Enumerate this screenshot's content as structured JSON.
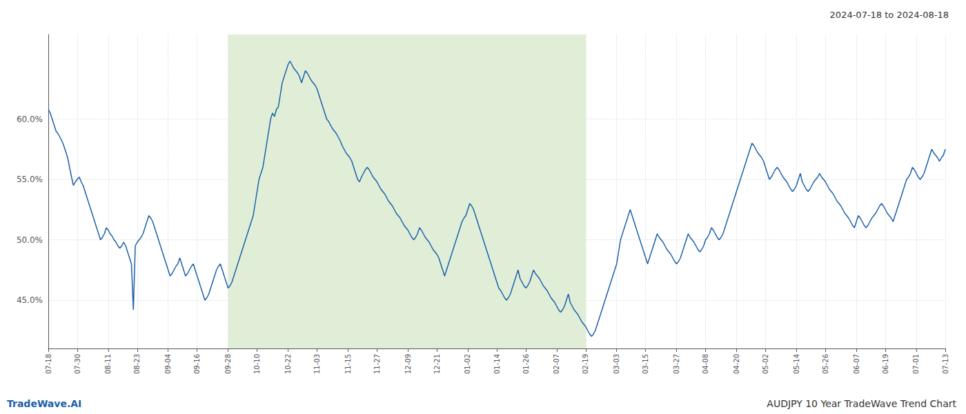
{
  "chart_data": {
    "type": "line",
    "title": "2024-07-18 to 2024-08-18",
    "footer_left": "TradeWave.AI",
    "footer_right": "AUDJPY 10 Year TradeWave Trend Chart",
    "color": "#1a5fa8",
    "grid": true,
    "ylim": [
      41.0,
      67.0
    ],
    "yticks": [
      {
        "value": 45.0,
        "label": "45.0%"
      },
      {
        "value": 50.0,
        "label": "50.0%"
      },
      {
        "value": 55.0,
        "label": "55.0%"
      },
      {
        "value": 60.0,
        "label": "60.0%"
      }
    ],
    "shade": {
      "from": "09-28",
      "to": "02-19",
      "color": "#e0eed8"
    },
    "categories": [
      "07-18",
      null,
      null,
      null,
      null,
      null,
      null,
      null,
      null,
      null,
      null,
      null,
      null,
      null,
      null,
      "07-30",
      null,
      null,
      null,
      null,
      null,
      null,
      null,
      null,
      null,
      null,
      null,
      null,
      null,
      null,
      null,
      "08-11",
      null,
      null,
      null,
      null,
      null,
      null,
      null,
      null,
      null,
      null,
      null,
      null,
      null,
      null,
      "08-23",
      null,
      null,
      null,
      null,
      null,
      null,
      null,
      null,
      null,
      null,
      null,
      null,
      null,
      null,
      null,
      "09-04",
      null,
      null,
      null,
      null,
      null,
      null,
      null,
      null,
      null,
      null,
      null,
      null,
      null,
      null,
      "09-16",
      null,
      null,
      null,
      null,
      null,
      null,
      null,
      null,
      null,
      null,
      null,
      null,
      null,
      null,
      null,
      "09-28",
      null,
      null,
      null,
      null,
      null,
      null,
      null,
      null,
      null,
      null,
      null,
      null,
      null,
      null,
      "10-10",
      null,
      null,
      null,
      null,
      null,
      null,
      null,
      null,
      null,
      null,
      null,
      null,
      null,
      null,
      null,
      "10-22",
      null,
      null,
      null,
      null,
      null,
      null,
      null,
      null,
      null,
      null,
      null,
      null,
      null,
      null,
      "11-03",
      null,
      null,
      null,
      null,
      null,
      null,
      null,
      null,
      null,
      null,
      null,
      null,
      null,
      null,
      null,
      "11-15",
      null,
      null,
      null,
      null,
      null,
      null,
      null,
      null,
      null,
      null,
      null,
      null,
      null,
      null,
      "11-27",
      null,
      null,
      null,
      null,
      null,
      null,
      null,
      null,
      null,
      null,
      null,
      null,
      null,
      null,
      null,
      "12-09",
      null,
      null,
      null,
      null,
      null,
      null,
      null,
      null,
      null,
      null,
      null,
      null,
      null,
      null,
      "12-21",
      null,
      null,
      null,
      null,
      null,
      null,
      null,
      null,
      null,
      null,
      null,
      null,
      null,
      null,
      null,
      "01-02",
      null,
      null,
      null,
      null,
      null,
      null,
      null,
      null,
      null,
      null,
      null,
      null,
      null,
      null,
      "01-14",
      null,
      null,
      null,
      null,
      null,
      null,
      null,
      null,
      null,
      null,
      null,
      null,
      null,
      null,
      "01-26",
      null,
      null,
      null,
      null,
      null,
      null,
      null,
      null,
      null,
      null,
      null,
      null,
      null,
      null,
      null,
      "02-07",
      null,
      null,
      null,
      null,
      null,
      null,
      null,
      null,
      null,
      null,
      null,
      null,
      null,
      null,
      "02-19",
      null,
      null,
      null,
      null,
      null,
      null,
      null,
      null,
      null,
      null,
      null,
      null,
      null,
      null,
      null,
      "03-03",
      null,
      null,
      null,
      null,
      null,
      null,
      null,
      null,
      null,
      null,
      null,
      null,
      null,
      null,
      "03-15",
      null,
      null,
      null,
      null,
      null,
      null,
      null,
      null,
      null,
      null,
      null,
      null,
      null,
      null,
      null,
      "03-27",
      null,
      null,
      null,
      null,
      null,
      null,
      null,
      null,
      null,
      null,
      null,
      null,
      null,
      null,
      "04-08",
      null,
      null,
      null,
      null,
      null,
      null,
      null,
      null,
      null,
      null,
      null,
      null,
      null,
      null,
      null,
      "04-20",
      null,
      null,
      null,
      null,
      null,
      null,
      null,
      null,
      null,
      null,
      null,
      null,
      null,
      null,
      "05-02",
      null,
      null,
      null,
      null,
      null,
      null,
      null,
      null,
      null,
      null,
      null,
      null,
      null,
      null,
      null,
      "05-14",
      null,
      null,
      null,
      null,
      null,
      null,
      null,
      null,
      null,
      null,
      null,
      null,
      null,
      null,
      "05-26",
      null,
      null,
      null,
      null,
      null,
      null,
      null,
      null,
      null,
      null,
      null,
      null,
      null,
      null,
      null,
      "06-07",
      null,
      null,
      null,
      null,
      null,
      null,
      null,
      null,
      null,
      null,
      null,
      null,
      null,
      null,
      "06-19",
      null,
      null,
      null,
      null,
      null,
      null,
      null,
      null,
      null,
      null,
      null,
      null,
      null,
      null,
      null,
      "07-01",
      null,
      null,
      null,
      null,
      null,
      null,
      null,
      null,
      null,
      null,
      null,
      null,
      null,
      null,
      "07-13"
    ],
    "values": [
      60.8,
      60.5,
      60.0,
      59.5,
      59.0,
      58.8,
      58.5,
      58.2,
      57.8,
      57.3,
      56.8,
      56.0,
      55.2,
      54.5,
      54.8,
      55.0,
      55.2,
      54.8,
      54.5,
      54.0,
      53.5,
      53.0,
      52.5,
      52.0,
      51.5,
      51.0,
      50.5,
      50.0,
      50.2,
      50.5,
      51.0,
      50.8,
      50.5,
      50.3,
      50.0,
      49.8,
      49.5,
      49.3,
      49.5,
      49.8,
      49.5,
      49.0,
      48.5,
      48.0,
      44.2,
      49.5,
      49.8,
      50.0,
      50.2,
      50.5,
      51.0,
      51.5,
      52.0,
      51.8,
      51.5,
      51.0,
      50.5,
      50.0,
      49.5,
      49.0,
      48.5,
      48.0,
      47.5,
      47.0,
      47.2,
      47.5,
      47.8,
      48.0,
      48.5,
      48.0,
      47.5,
      47.0,
      47.2,
      47.5,
      47.8,
      48.0,
      47.5,
      47.0,
      46.5,
      46.0,
      45.5,
      45.0,
      45.2,
      45.5,
      46.0,
      46.5,
      47.0,
      47.5,
      47.8,
      48.0,
      47.5,
      47.0,
      46.5,
      46.0,
      46.2,
      46.5,
      47.0,
      47.5,
      48.0,
      48.5,
      49.0,
      49.5,
      50.0,
      50.5,
      51.0,
      51.5,
      52.0,
      53.0,
      54.0,
      55.0,
      55.5,
      56.0,
      57.0,
      58.0,
      59.0,
      60.0,
      60.5,
      60.2,
      60.8,
      61.0,
      62.0,
      63.0,
      63.5,
      64.0,
      64.5,
      64.8,
      64.5,
      64.2,
      64.0,
      63.8,
      63.5,
      63.0,
      63.5,
      64.0,
      63.8,
      63.5,
      63.2,
      63.0,
      62.8,
      62.5,
      62.0,
      61.5,
      61.0,
      60.5,
      60.0,
      59.8,
      59.5,
      59.2,
      59.0,
      58.8,
      58.5,
      58.2,
      57.8,
      57.5,
      57.2,
      57.0,
      56.8,
      56.5,
      56.0,
      55.5,
      55.0,
      54.8,
      55.2,
      55.5,
      55.8,
      56.0,
      55.8,
      55.5,
      55.2,
      55.0,
      54.8,
      54.5,
      54.2,
      54.0,
      53.8,
      53.5,
      53.2,
      53.0,
      52.8,
      52.5,
      52.2,
      52.0,
      51.8,
      51.5,
      51.2,
      51.0,
      50.8,
      50.5,
      50.2,
      50.0,
      50.2,
      50.5,
      51.0,
      50.8,
      50.5,
      50.2,
      50.0,
      49.8,
      49.5,
      49.2,
      49.0,
      48.8,
      48.5,
      48.0,
      47.5,
      47.0,
      47.5,
      48.0,
      48.5,
      49.0,
      49.5,
      50.0,
      50.5,
      51.0,
      51.5,
      51.8,
      52.0,
      52.5,
      53.0,
      52.8,
      52.5,
      52.0,
      51.5,
      51.0,
      50.5,
      50.0,
      49.5,
      49.0,
      48.5,
      48.0,
      47.5,
      47.0,
      46.5,
      46.0,
      45.8,
      45.5,
      45.2,
      45.0,
      45.2,
      45.5,
      46.0,
      46.5,
      47.0,
      47.5,
      46.8,
      46.5,
      46.2,
      46.0,
      46.2,
      46.5,
      47.0,
      47.5,
      47.2,
      47.0,
      46.8,
      46.5,
      46.2,
      46.0,
      45.8,
      45.5,
      45.2,
      45.0,
      44.8,
      44.5,
      44.2,
      44.0,
      44.2,
      44.5,
      45.0,
      45.5,
      44.8,
      44.5,
      44.2,
      44.0,
      43.8,
      43.5,
      43.2,
      43.0,
      42.8,
      42.5,
      42.2,
      42.0,
      42.2,
      42.5,
      43.0,
      43.5,
      44.0,
      44.5,
      45.0,
      45.5,
      46.0,
      46.5,
      47.0,
      47.5,
      48.0,
      49.0,
      50.0,
      50.5,
      51.0,
      51.5,
      52.0,
      52.5,
      52.0,
      51.5,
      51.0,
      50.5,
      50.0,
      49.5,
      49.0,
      48.5,
      48.0,
      48.5,
      49.0,
      49.5,
      50.0,
      50.5,
      50.2,
      50.0,
      49.8,
      49.5,
      49.2,
      49.0,
      48.8,
      48.5,
      48.2,
      48.0,
      48.2,
      48.5,
      49.0,
      49.5,
      50.0,
      50.5,
      50.2,
      50.0,
      49.8,
      49.5,
      49.2,
      49.0,
      49.2,
      49.5,
      50.0,
      50.2,
      50.5,
      51.0,
      50.8,
      50.5,
      50.2,
      50.0,
      50.2,
      50.5,
      51.0,
      51.5,
      52.0,
      52.5,
      53.0,
      53.5,
      54.0,
      54.5,
      55.0,
      55.5,
      56.0,
      56.5,
      57.0,
      57.5,
      58.0,
      57.8,
      57.5,
      57.2,
      57.0,
      56.8,
      56.5,
      56.0,
      55.5,
      55.0,
      55.2,
      55.5,
      55.8,
      56.0,
      55.8,
      55.5,
      55.2,
      55.0,
      54.8,
      54.5,
      54.2,
      54.0,
      54.2,
      54.5,
      55.0,
      55.5,
      54.8,
      54.5,
      54.2,
      54.0,
      54.2,
      54.5,
      54.8,
      55.0,
      55.2,
      55.5,
      55.2,
      55.0,
      54.8,
      54.5,
      54.2,
      54.0,
      53.8,
      53.5,
      53.2,
      53.0,
      52.8,
      52.5,
      52.2,
      52.0,
      51.8,
      51.5,
      51.2,
      51.0,
      51.5,
      52.0,
      51.8,
      51.5,
      51.2,
      51.0,
      51.2,
      51.5,
      51.8,
      52.0,
      52.2,
      52.5,
      52.8,
      53.0,
      52.8,
      52.5,
      52.2,
      52.0,
      51.8,
      51.5,
      52.0,
      52.5,
      53.0,
      53.5,
      54.0,
      54.5,
      55.0,
      55.2,
      55.5,
      56.0,
      55.8,
      55.5,
      55.2,
      55.0,
      55.2,
      55.5,
      56.0,
      56.5,
      57.0,
      57.5,
      57.2,
      57.0,
      56.8,
      56.5,
      56.8,
      57.0,
      57.5
    ]
  }
}
